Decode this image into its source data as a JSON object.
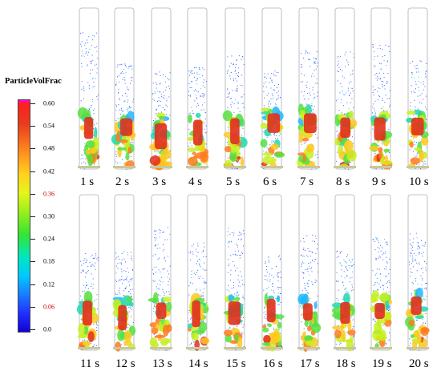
{
  "legend": {
    "title": "ParticleVolFrac",
    "ticks": [
      "0.60",
      "0.54",
      "0.48",
      "0.42",
      "0.36",
      "0.30",
      "0.24",
      "0.18",
      "0.12",
      "0.06",
      "0.0"
    ],
    "tick_colors": [
      "#000000",
      "#000000",
      "#000000",
      "#000000",
      "#cc0000",
      "#000000",
      "#000000",
      "#000000",
      "#000000",
      "#cc0000",
      "#000000"
    ]
  },
  "snapshots": {
    "row1": [
      "1 s",
      "2 s",
      "3 s",
      "4 s",
      "5 s",
      "6 s",
      "7 s",
      "8 s",
      "9 s",
      "10 s"
    ],
    "row2": [
      "11 s",
      "12 s",
      "13 s",
      "14 s",
      "15 s",
      "16 s",
      "17 s",
      "18 s",
      "19 s",
      "20 s"
    ]
  }
}
